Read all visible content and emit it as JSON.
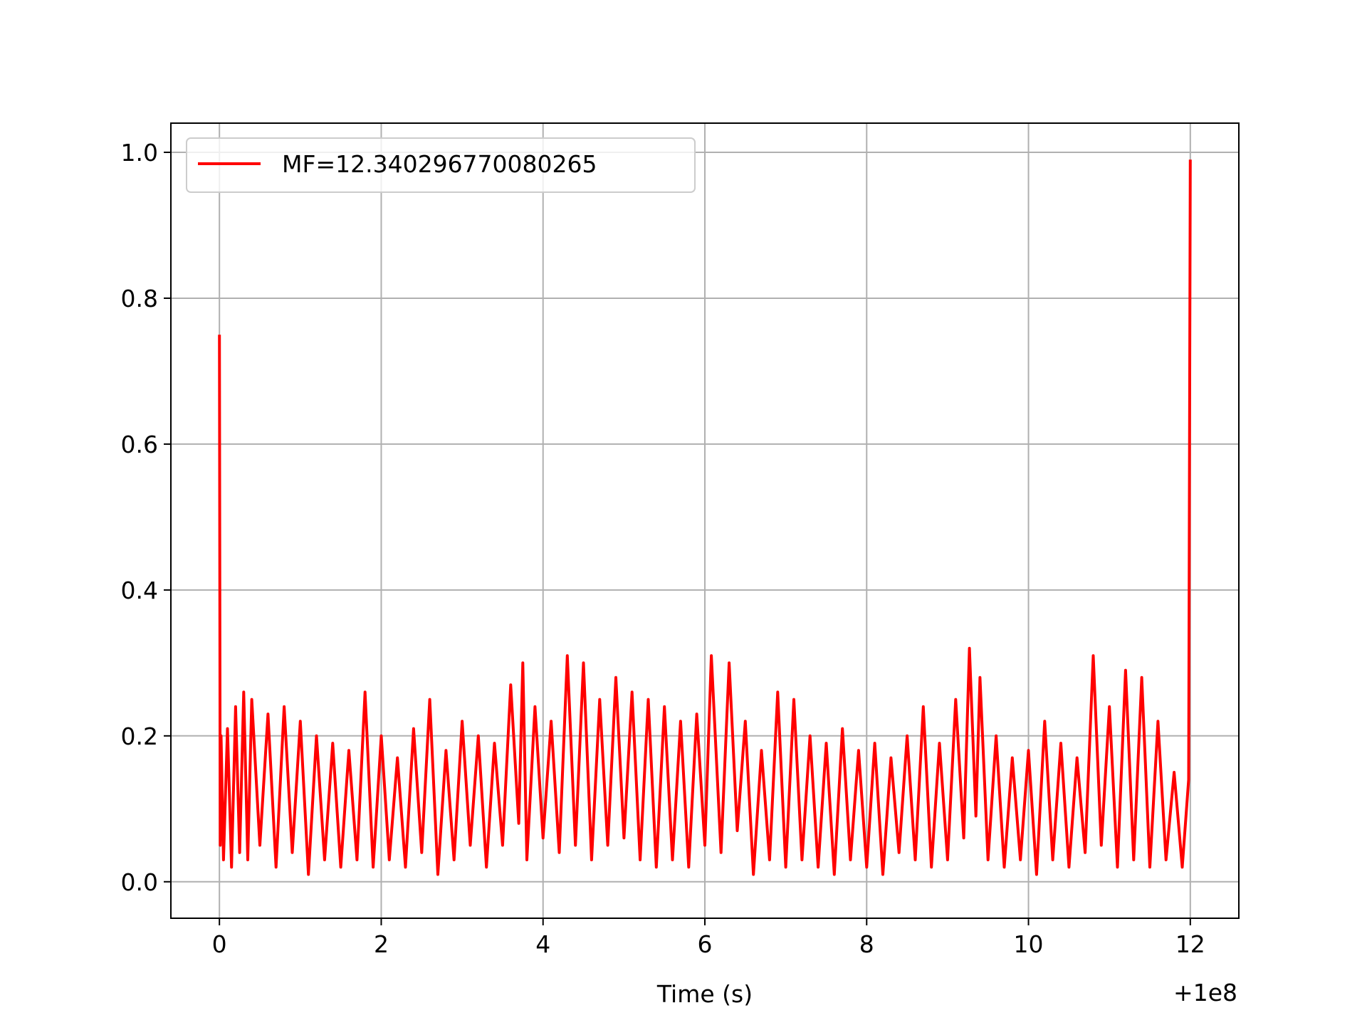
{
  "chart_data": {
    "type": "line",
    "title": "",
    "xlabel": "Time (s)",
    "ylabel": "",
    "x_offset_label": "+1e8",
    "xlim": [
      -0.6,
      12.6
    ],
    "ylim": [
      -0.05,
      1.04
    ],
    "x_ticks": [
      0,
      2,
      4,
      6,
      8,
      10,
      12
    ],
    "x_tick_labels": [
      "0",
      "2",
      "4",
      "6",
      "8",
      "10",
      "12"
    ],
    "y_ticks": [
      0.0,
      0.2,
      0.4,
      0.6,
      0.8,
      1.0
    ],
    "y_tick_labels": [
      "0.0",
      "0.2",
      "0.4",
      "0.6",
      "0.8",
      "1.0"
    ],
    "grid": true,
    "legend_position": "top-left",
    "series": [
      {
        "name": "MF=12.340296770080265",
        "color": "#ff0000",
        "x": [
          0.0,
          0.01,
          0.02,
          0.05,
          0.1,
          0.15,
          0.2,
          0.25,
          0.3,
          0.35,
          0.4,
          0.5,
          0.6,
          0.7,
          0.8,
          0.9,
          1.0,
          1.1,
          1.2,
          1.3,
          1.4,
          1.5,
          1.6,
          1.7,
          1.8,
          1.9,
          2.0,
          2.1,
          2.2,
          2.3,
          2.4,
          2.5,
          2.6,
          2.7,
          2.8,
          2.9,
          3.0,
          3.1,
          3.2,
          3.3,
          3.4,
          3.5,
          3.6,
          3.7,
          3.75,
          3.8,
          3.9,
          4.0,
          4.1,
          4.2,
          4.3,
          4.4,
          4.5,
          4.6,
          4.7,
          4.8,
          4.9,
          5.0,
          5.1,
          5.2,
          5.3,
          5.4,
          5.5,
          5.6,
          5.7,
          5.8,
          5.9,
          6.0,
          6.08,
          6.2,
          6.3,
          6.4,
          6.5,
          6.6,
          6.7,
          6.8,
          6.9,
          7.0,
          7.1,
          7.2,
          7.3,
          7.4,
          7.5,
          7.6,
          7.7,
          7.8,
          7.9,
          8.0,
          8.1,
          8.2,
          8.3,
          8.4,
          8.5,
          8.6,
          8.7,
          8.8,
          8.9,
          9.0,
          9.1,
          9.2,
          9.27,
          9.35,
          9.4,
          9.5,
          9.6,
          9.7,
          9.8,
          9.9,
          10.0,
          10.1,
          10.2,
          10.3,
          10.4,
          10.5,
          10.6,
          10.7,
          10.8,
          10.9,
          11.0,
          11.1,
          11.2,
          11.3,
          11.4,
          11.5,
          11.6,
          11.7,
          11.8,
          11.9,
          11.98,
          12.0
        ],
        "y": [
          0.75,
          0.05,
          0.2,
          0.03,
          0.21,
          0.02,
          0.24,
          0.04,
          0.26,
          0.03,
          0.25,
          0.05,
          0.23,
          0.02,
          0.24,
          0.04,
          0.22,
          0.01,
          0.2,
          0.03,
          0.19,
          0.02,
          0.18,
          0.03,
          0.26,
          0.02,
          0.2,
          0.03,
          0.17,
          0.02,
          0.21,
          0.04,
          0.25,
          0.01,
          0.18,
          0.03,
          0.22,
          0.05,
          0.2,
          0.02,
          0.19,
          0.05,
          0.27,
          0.08,
          0.3,
          0.03,
          0.24,
          0.06,
          0.22,
          0.04,
          0.31,
          0.05,
          0.3,
          0.03,
          0.25,
          0.05,
          0.28,
          0.06,
          0.26,
          0.03,
          0.25,
          0.02,
          0.24,
          0.03,
          0.22,
          0.02,
          0.23,
          0.05,
          0.31,
          0.04,
          0.3,
          0.07,
          0.22,
          0.01,
          0.18,
          0.03,
          0.26,
          0.02,
          0.25,
          0.03,
          0.2,
          0.02,
          0.19,
          0.01,
          0.21,
          0.03,
          0.18,
          0.02,
          0.19,
          0.01,
          0.17,
          0.04,
          0.2,
          0.03,
          0.24,
          0.02,
          0.19,
          0.03,
          0.25,
          0.06,
          0.32,
          0.09,
          0.28,
          0.03,
          0.2,
          0.02,
          0.17,
          0.03,
          0.18,
          0.01,
          0.22,
          0.03,
          0.19,
          0.02,
          0.17,
          0.04,
          0.31,
          0.05,
          0.24,
          0.02,
          0.29,
          0.03,
          0.28,
          0.02,
          0.22,
          0.03,
          0.15,
          0.02,
          0.14,
          0.99
        ]
      }
    ]
  }
}
